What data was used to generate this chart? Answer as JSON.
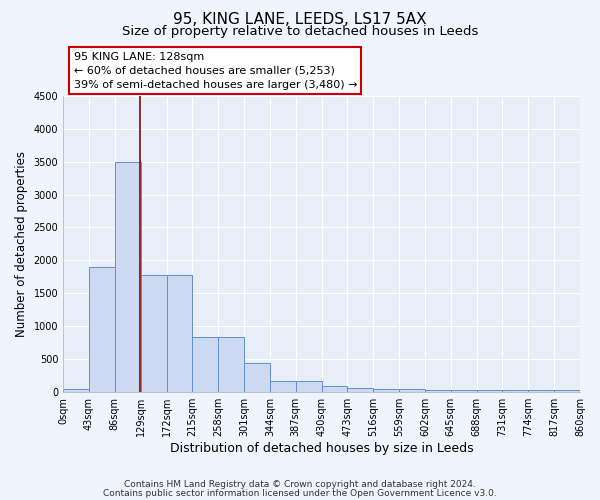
{
  "title": "95, KING LANE, LEEDS, LS17 5AX",
  "subtitle": "Size of property relative to detached houses in Leeds",
  "xlabel": "Distribution of detached houses by size in Leeds",
  "ylabel": "Number of detached properties",
  "footnote1": "Contains HM Land Registry data © Crown copyright and database right 2024.",
  "footnote2": "Contains public sector information licensed under the Open Government Licence v3.0.",
  "bin_edges": [
    0,
    43,
    86,
    129,
    172,
    215,
    258,
    301,
    344,
    387,
    430,
    473,
    516,
    559,
    602,
    645,
    688,
    731,
    774,
    817,
    860
  ],
  "bar_heights": [
    50,
    1900,
    3500,
    1780,
    1780,
    840,
    840,
    450,
    170,
    170,
    95,
    60,
    55,
    55,
    40,
    40,
    40,
    40,
    40,
    40
  ],
  "bar_color": "#ccd9f0",
  "bar_edge_color": "#6090d0",
  "ylim": [
    0,
    4500
  ],
  "yticks": [
    0,
    500,
    1000,
    1500,
    2000,
    2500,
    3000,
    3500,
    4000,
    4500
  ],
  "red_line_x": 128,
  "annotation_line1": "95 KING LANE: 128sqm",
  "annotation_line2": "← 60% of detached houses are smaller (5,253)",
  "annotation_line3": "39% of semi-detached houses are larger (3,480) →",
  "bg_color": "#f0f4fc",
  "plot_bg_color": "#e8eef8",
  "grid_color": "#ffffff",
  "title_fontsize": 11,
  "subtitle_fontsize": 9.5,
  "tick_label_fontsize": 7,
  "ylabel_fontsize": 8.5,
  "xlabel_fontsize": 9,
  "annotation_fontsize": 8,
  "footnote_fontsize": 6.5
}
